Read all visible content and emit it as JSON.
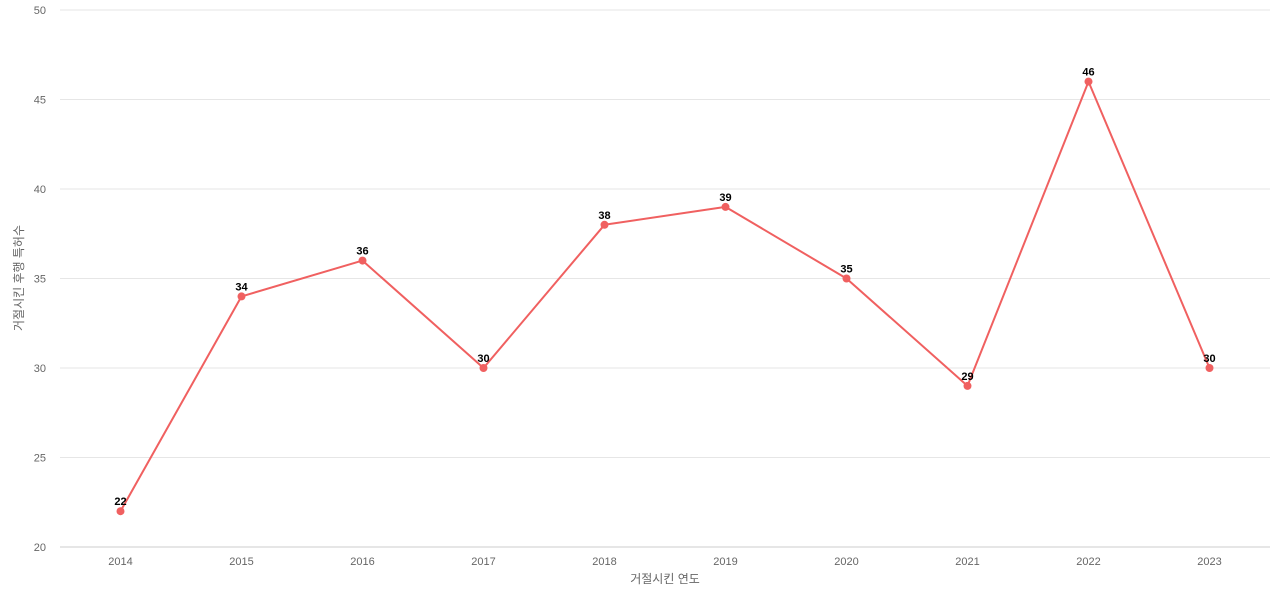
{
  "chart_data": {
    "type": "line",
    "title": "",
    "xlabel": "거절시킨 연도",
    "ylabel": "거절시킨 후행 특허수",
    "categories": [
      "2014",
      "2015",
      "2016",
      "2017",
      "2018",
      "2019",
      "2020",
      "2021",
      "2022",
      "2023"
    ],
    "series": [
      {
        "values": [
          22,
          34,
          36,
          30,
          38,
          39,
          35,
          29,
          46,
          30
        ],
        "color": "#f06060"
      }
    ],
    "ylim": [
      20,
      50
    ],
    "yticks": [
      20,
      25,
      30,
      35,
      40,
      45,
      50
    ],
    "grid": true,
    "legend": "none"
  }
}
